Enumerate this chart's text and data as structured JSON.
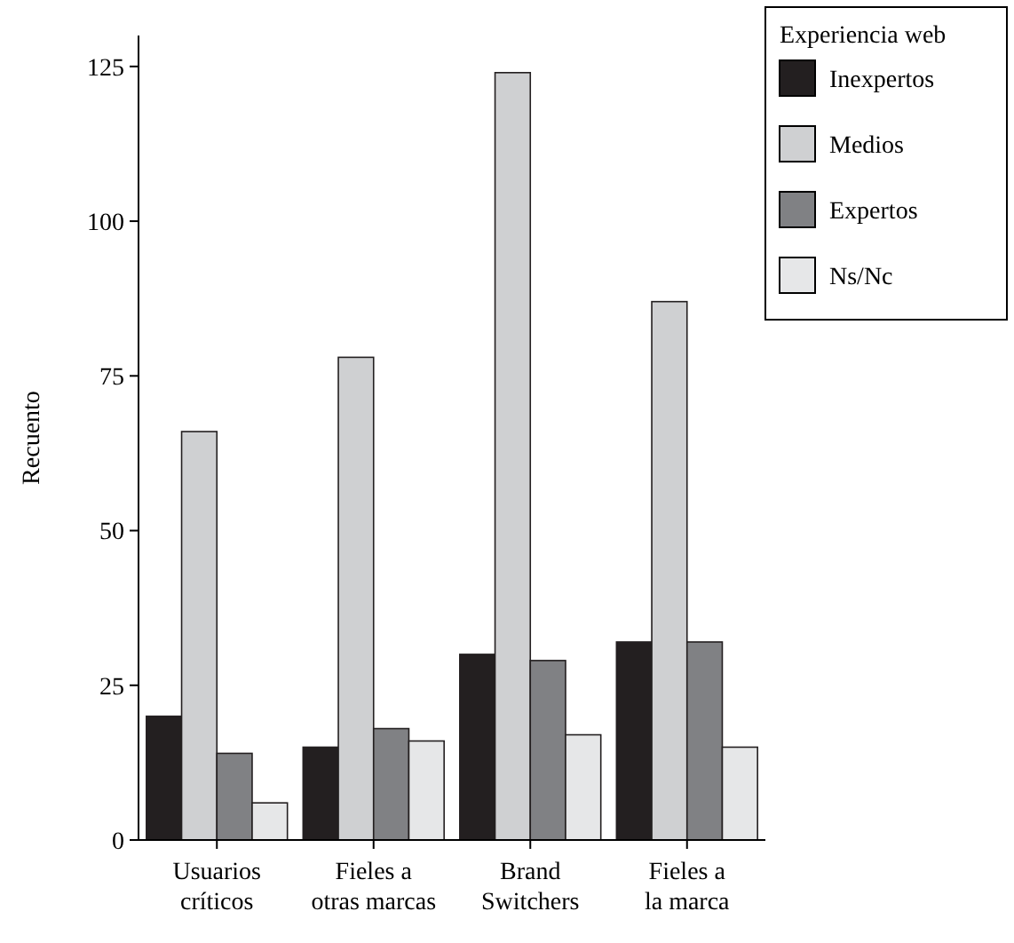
{
  "chart_data": {
    "type": "bar",
    "ylabel": "Recuento",
    "legend_title": "Experiencia web",
    "categories": [
      "Usuarios\ncríticos",
      "Fieles a\notras marcas",
      "Brand\nSwitchers",
      "Fieles a\nla marca"
    ],
    "series": [
      {
        "name": "Inexpertos",
        "color": "#231f20",
        "values": [
          20,
          15,
          30,
          32
        ]
      },
      {
        "name": "Medios",
        "color": "#cfd0d2",
        "values": [
          66,
          78,
          124,
          87
        ]
      },
      {
        "name": "Expertos",
        "color": "#808184",
        "values": [
          14,
          18,
          29,
          32
        ]
      },
      {
        "name": "Ns/Nc",
        "color": "#e6e7e8",
        "values": [
          6,
          16,
          17,
          15
        ]
      }
    ],
    "ylim": [
      0,
      130
    ],
    "yticks": [
      0,
      25,
      50,
      75,
      100,
      125
    ],
    "legend": "top right",
    "grid": false
  }
}
